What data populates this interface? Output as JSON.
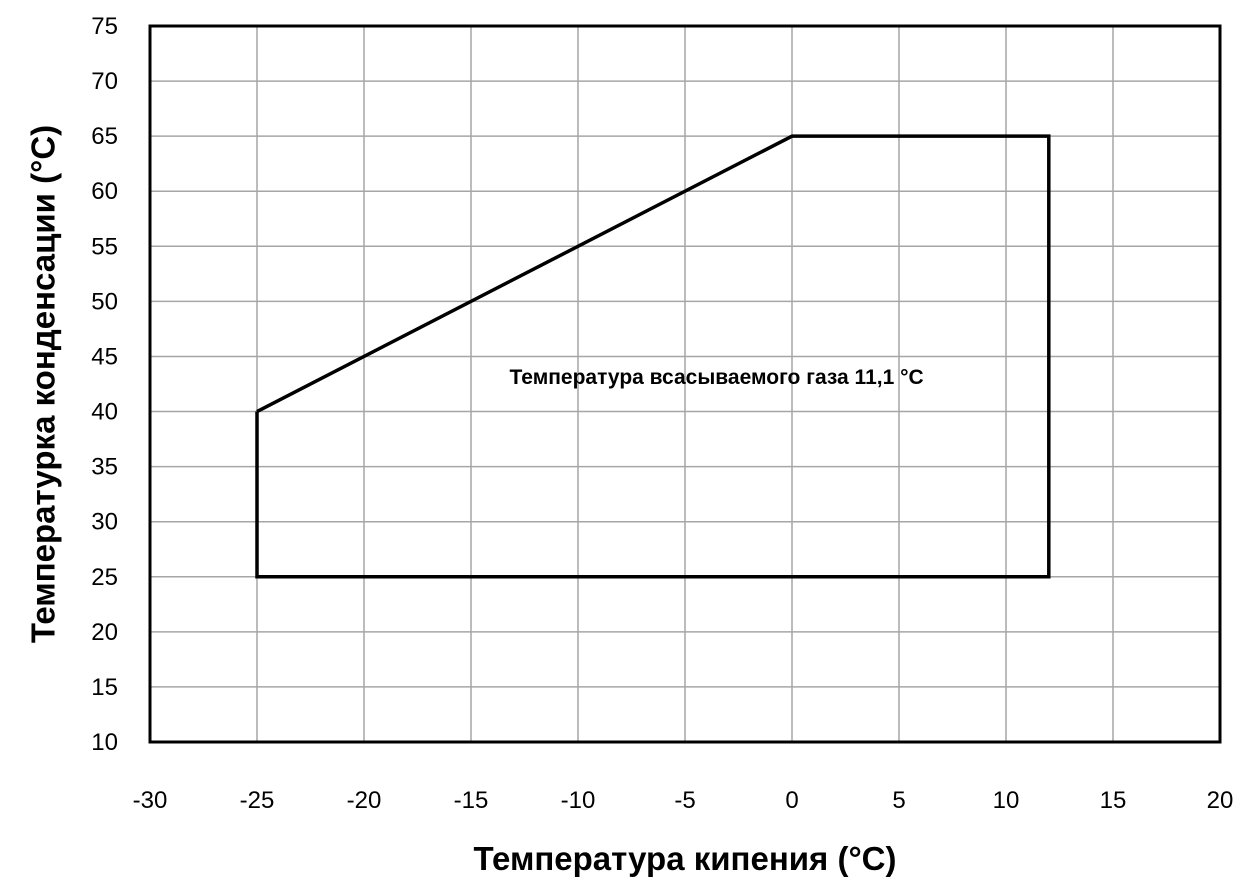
{
  "chart_data": {
    "type": "line",
    "title": "",
    "xlabel": "Температура кипения (°C)",
    "ylabel": "Температурка конденсации (°C)",
    "xlim": [
      -30,
      20
    ],
    "ylim": [
      10,
      75
    ],
    "x_ticks": [
      -30,
      -25,
      -20,
      -15,
      -10,
      -5,
      0,
      5,
      10,
      15,
      20
    ],
    "y_ticks": [
      10,
      15,
      20,
      25,
      30,
      35,
      40,
      45,
      50,
      55,
      60,
      65,
      70,
      75
    ],
    "grid": true,
    "series": [
      {
        "points": [
          {
            "x": -25,
            "y": 40
          },
          {
            "x": 0,
            "y": 65
          },
          {
            "x": 12,
            "y": 65
          },
          {
            "x": 12,
            "y": 25
          },
          {
            "x": -25,
            "y": 25
          },
          {
            "x": -25,
            "y": 40
          }
        ],
        "color": "#000000"
      }
    ],
    "annotation": {
      "text": "Температура всасываемого газа 11,1 °С",
      "x": -13.2,
      "y": 42.5
    }
  }
}
